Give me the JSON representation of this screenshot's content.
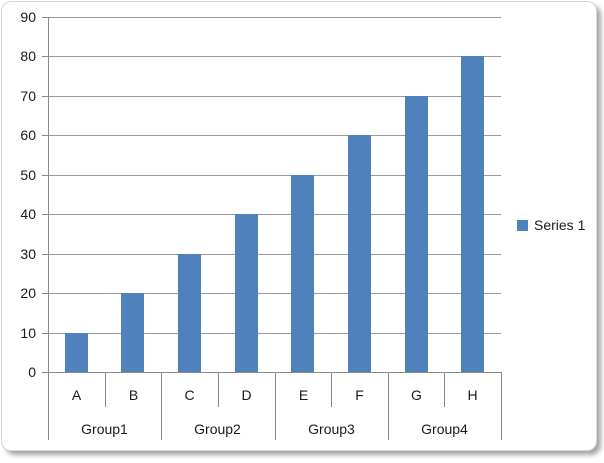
{
  "chart_data": {
    "type": "bar",
    "title": "",
    "xlabel": "",
    "ylabel": "",
    "categories": [
      "A",
      "B",
      "C",
      "D",
      "E",
      "F",
      "G",
      "H"
    ],
    "category_groups": [
      {
        "label": "Group1",
        "span": 2
      },
      {
        "label": "Group2",
        "span": 2
      },
      {
        "label": "Group3",
        "span": 2
      },
      {
        "label": "Group4",
        "span": 2
      }
    ],
    "series": [
      {
        "name": "Series 1",
        "color": "#4f81bd",
        "values": [
          10,
          20,
          30,
          40,
          50,
          60,
          70,
          80
        ]
      }
    ],
    "ylim": [
      0,
      90
    ],
    "yticks": [
      0,
      10,
      20,
      30,
      40,
      50,
      60,
      70,
      80,
      90
    ],
    "grid": true,
    "legend_position": "right",
    "colors": {
      "bar": "#4f81bd",
      "gridline": "#989898",
      "axis_line": "#8a8a8a",
      "text": "#1a1a1a",
      "frame_border": "#d6d6d6",
      "background": "#ffffff"
    }
  }
}
